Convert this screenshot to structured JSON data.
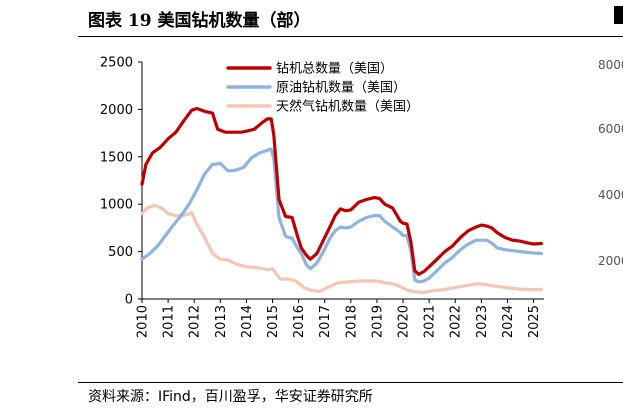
{
  "header": {
    "title": "图表 19 美国钻机数量（部）"
  },
  "footer": {
    "source": "资料来源：IFind，百川盈孚，华安证券研究所"
  },
  "peek": {
    "ticks": [
      "8000",
      "6000",
      "4000",
      "2000"
    ]
  },
  "chart_data": {
    "type": "line",
    "title": "美国钻机数量（部）",
    "ylim": [
      0,
      2500
    ],
    "yticks": [
      0,
      500,
      1000,
      1500,
      2000,
      2500
    ],
    "xlim": [
      2010,
      2025.4
    ],
    "xticks": [
      "2010",
      "2011",
      "2012",
      "2013",
      "2014",
      "2015",
      "2016",
      "2017",
      "2018",
      "2019",
      "2020",
      "2021",
      "2022",
      "2023",
      "2024",
      "2025"
    ],
    "legend_position": "top-left",
    "series": [
      {
        "name": "钻机总数量（美国）",
        "color": "#c00000",
        "x": [
          2010.0,
          2010.15,
          2010.4,
          2010.7,
          2011.0,
          2011.3,
          2011.6,
          2011.9,
          2012.1,
          2012.4,
          2012.7,
          2012.9,
          2013.2,
          2013.5,
          2013.8,
          2014.0,
          2014.3,
          2014.6,
          2014.8,
          2014.95,
          2015.05,
          2015.25,
          2015.5,
          2015.75,
          2015.95,
          2016.1,
          2016.3,
          2016.45,
          2016.7,
          2016.95,
          2017.2,
          2017.4,
          2017.6,
          2017.8,
          2018.0,
          2018.3,
          2018.6,
          2018.9,
          2019.1,
          2019.3,
          2019.6,
          2019.9,
          2020.0,
          2020.15,
          2020.3,
          2020.45,
          2020.6,
          2020.8,
          2021.0,
          2021.3,
          2021.6,
          2021.9,
          2022.2,
          2022.5,
          2022.8,
          2023.0,
          2023.2,
          2023.4,
          2023.6,
          2023.9,
          2024.2,
          2024.5,
          2024.8,
          2025.0,
          2025.3
        ],
        "values": [
          1210,
          1420,
          1540,
          1600,
          1690,
          1760,
          1880,
          1990,
          2010,
          1980,
          1960,
          1790,
          1760,
          1760,
          1760,
          1770,
          1790,
          1860,
          1900,
          1900,
          1730,
          1050,
          870,
          860,
          670,
          540,
          460,
          420,
          480,
          620,
          760,
          880,
          950,
          930,
          940,
          1020,
          1050,
          1070,
          1060,
          1000,
          960,
          820,
          800,
          790,
          600,
          300,
          260,
          290,
          340,
          420,
          500,
          560,
          650,
          720,
          760,
          780,
          770,
          750,
          700,
          650,
          620,
          610,
          590,
          580,
          585
        ]
      },
      {
        "name": "原油钻机数量（美国）",
        "color": "#8db3e2",
        "x": [
          2010.0,
          2010.3,
          2010.6,
          2010.9,
          2011.2,
          2011.5,
          2011.8,
          2012.1,
          2012.4,
          2012.7,
          2013.0,
          2013.3,
          2013.6,
          2013.9,
          2014.2,
          2014.5,
          2014.8,
          2014.95,
          2015.05,
          2015.25,
          2015.5,
          2015.75,
          2015.95,
          2016.1,
          2016.3,
          2016.45,
          2016.7,
          2016.95,
          2017.2,
          2017.4,
          2017.6,
          2017.8,
          2018.0,
          2018.3,
          2018.6,
          2018.9,
          2019.1,
          2019.3,
          2019.6,
          2019.9,
          2020.0,
          2020.15,
          2020.3,
          2020.45,
          2020.6,
          2020.8,
          2021.0,
          2021.3,
          2021.6,
          2021.9,
          2022.2,
          2022.5,
          2022.8,
          2023.0,
          2023.2,
          2023.4,
          2023.6,
          2023.9,
          2024.2,
          2024.5,
          2024.8,
          2025.0,
          2025.3
        ],
        "values": [
          420,
          480,
          560,
          670,
          780,
          880,
          1000,
          1150,
          1320,
          1420,
          1430,
          1350,
          1360,
          1390,
          1490,
          1540,
          1570,
          1580,
          1480,
          860,
          660,
          640,
          540,
          480,
          360,
          320,
          380,
          500,
          640,
          720,
          760,
          750,
          760,
          820,
          860,
          880,
          880,
          820,
          760,
          700,
          670,
          670,
          510,
          200,
          180,
          190,
          220,
          300,
          380,
          440,
          520,
          580,
          620,
          620,
          620,
          590,
          540,
          520,
          510,
          500,
          490,
          485,
          480
        ]
      },
      {
        "name": "天然气钻机数量（美国）",
        "color": "#f5c6b3",
        "x": [
          2010.0,
          2010.2,
          2010.5,
          2010.8,
          2011.0,
          2011.3,
          2011.6,
          2011.9,
          2012.1,
          2012.4,
          2012.7,
          2013.0,
          2013.3,
          2013.6,
          2014.0,
          2014.4,
          2014.8,
          2015.0,
          2015.3,
          2015.6,
          2015.9,
          2016.2,
          2016.5,
          2016.8,
          2017.1,
          2017.5,
          2017.9,
          2018.3,
          2018.7,
          2019.0,
          2019.3,
          2019.6,
          2019.9,
          2020.2,
          2020.5,
          2020.8,
          2021.2,
          2021.6,
          2022.0,
          2022.4,
          2022.8,
          2023.1,
          2023.4,
          2023.7,
          2024.0,
          2024.4,
          2024.8,
          2025.0,
          2025.3
        ],
        "values": [
          900,
          960,
          990,
          950,
          900,
          880,
          880,
          910,
          790,
          650,
          480,
          420,
          410,
          370,
          340,
          330,
          310,
          320,
          210,
          210,
          190,
          120,
          90,
          80,
          120,
          170,
          180,
          190,
          190,
          190,
          170,
          160,
          130,
          90,
          75,
          70,
          90,
          100,
          120,
          140,
          160,
          155,
          140,
          130,
          120,
          105,
          100,
          100,
          100
        ]
      }
    ]
  }
}
